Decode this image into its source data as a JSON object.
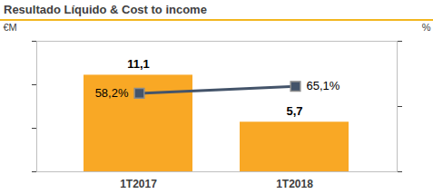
{
  "chart_data": {
    "type": "bar",
    "title": "Resultado Líquido & Cost to income",
    "categories": [
      "1T2017",
      "1T2018"
    ],
    "ylabel": "€M",
    "y2label": "%",
    "ylim": [
      0,
      15
    ],
    "yticks": [
      0,
      5,
      10,
      15
    ],
    "y2lim": [
      -20,
      110
    ],
    "y2ticks": [
      -20,
      45,
      110
    ],
    "tick_labels": "x",
    "data_labels": true,
    "series": [
      {
        "type": "bar",
        "color": "#F9A825",
        "values": [
          11.1,
          5.7
        ],
        "value_labels": [
          "11,1",
          "5,7"
        ]
      },
      {
        "type": "line",
        "axis": "y2",
        "color": "#44546A",
        "marker": "square",
        "values": [
          58.2,
          65.1
        ],
        "value_labels": [
          "58,2%",
          "65,1%"
        ]
      }
    ]
  }
}
